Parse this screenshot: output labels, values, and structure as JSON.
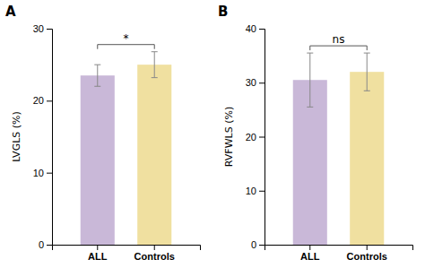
{
  "chart_data": [
    {
      "type": "bar",
      "title": "A",
      "categories": [
        "ALL",
        "Controls"
      ],
      "values": [
        23.5,
        25.0
      ],
      "errors": [
        1.5,
        1.8
      ],
      "colors": [
        "#c9b8d8",
        "#f0e0a0"
      ],
      "ylabel": "LVGLS (%)",
      "ylim": [
        0,
        30
      ],
      "yticks": [
        0,
        10,
        20,
        30
      ],
      "annotation": "*",
      "grid": false
    },
    {
      "type": "bar",
      "title": "B",
      "categories": [
        "ALL",
        "Controls"
      ],
      "values": [
        30.5,
        32.0
      ],
      "errors": [
        5.0,
        3.5
      ],
      "colors": [
        "#c9b8d8",
        "#f0e0a0"
      ],
      "ylabel": "RVFWLS (%)",
      "ylim": [
        0,
        40
      ],
      "yticks": [
        0,
        10,
        20,
        30,
        40
      ],
      "annotation": "ns",
      "grid": false
    }
  ]
}
